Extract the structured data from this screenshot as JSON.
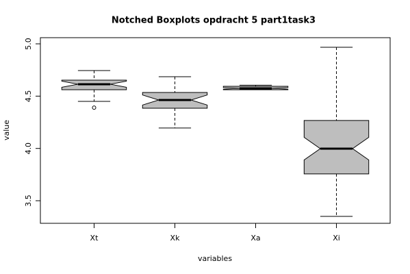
{
  "chart_data": {
    "type": "boxplot",
    "title": "Notched Boxplots opdracht 5 part1task3",
    "x_label": "variables",
    "y_label": "value",
    "categories": [
      "Xt",
      "Xk",
      "Xa",
      "Xi"
    ],
    "whisker_low": [
      4.45,
      4.195,
      4.565,
      3.35
    ],
    "q1": [
      4.561,
      4.384,
      4.561,
      3.756
    ],
    "median": [
      4.614,
      4.463,
      4.574,
      3.998
    ],
    "q3": [
      4.653,
      4.535,
      4.594,
      4.267
    ],
    "whisker_high": [
      4.745,
      4.686,
      4.605,
      4.967
    ],
    "notch_low": [
      4.585,
      4.415,
      4.566,
      3.89
    ],
    "notch_high": [
      4.643,
      4.511,
      4.582,
      4.106
    ],
    "outliers": [
      [
        4.39
      ],
      [],
      [],
      []
    ],
    "color": "#bebebe",
    "ylim": [
      3.284,
      5.059
    ],
    "yticks": [
      3.5,
      {
        "value": 4.0,
        "label": "4.0"
      },
      4.5,
      {
        "value": 5.0,
        "label": "5.0"
      }
    ]
  }
}
